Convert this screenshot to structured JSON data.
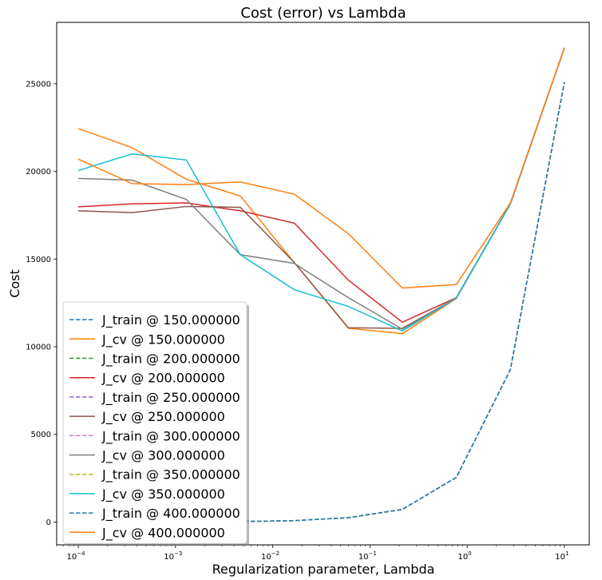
{
  "chart_data": {
    "type": "line",
    "title": "Cost (error) vs Lambda",
    "xlabel": "Regularization parameter, Lambda",
    "ylabel": "Cost",
    "xscale": "log",
    "xlim": [
      6e-05,
      18
    ],
    "ylim": [
      -1300,
      28500
    ],
    "xticks": [
      {
        "value": 0.0001,
        "base": "10",
        "exp": "−4"
      },
      {
        "value": 0.001,
        "base": "10",
        "exp": "−3"
      },
      {
        "value": 0.01,
        "base": "10",
        "exp": "−2"
      },
      {
        "value": 0.1,
        "base": "10",
        "exp": "−1"
      },
      {
        "value": 1,
        "base": "10",
        "exp": "0"
      },
      {
        "value": 10,
        "base": "10",
        "exp": "1"
      }
    ],
    "yticks": [
      0,
      5000,
      10000,
      15000,
      20000,
      25000
    ],
    "legend_position": "lower-left",
    "x": [
      0.0001,
      0.000359,
      0.001292,
      0.004642,
      0.016681,
      0.059948,
      0.215443,
      0.774264,
      2.782559,
      10
    ],
    "series": [
      {
        "name": "J_train @ 150.000000",
        "color": "#1f77b4",
        "dash": true,
        "values": [
          5,
          10,
          15,
          30,
          80,
          250,
          720,
          2550,
          8700,
          25100
        ]
      },
      {
        "name": "J_cv @ 150.000000",
        "color": "#ff7f0e",
        "dash": false,
        "values": [
          22450,
          21350,
          19550,
          18600,
          14800,
          11050,
          10750,
          12750,
          18150,
          27050
        ]
      },
      {
        "name": "J_train @ 200.000000",
        "color": "#2ca02c",
        "dash": true,
        "values": [
          5,
          10,
          15,
          30,
          80,
          250,
          720,
          2550,
          8700,
          25100
        ]
      },
      {
        "name": "J_cv @ 200.000000",
        "color": "#d62728",
        "dash": false,
        "values": [
          17980,
          18150,
          18200,
          17750,
          17050,
          13800,
          11400,
          12800,
          18150,
          27050
        ]
      },
      {
        "name": "J_train @ 250.000000",
        "color": "#9467bd",
        "dash": true,
        "values": [
          5,
          10,
          15,
          30,
          80,
          250,
          720,
          2550,
          8700,
          25100
        ]
      },
      {
        "name": "J_cv @ 250.000000",
        "color": "#8c564b",
        "dash": false,
        "values": [
          17750,
          17650,
          18000,
          17950,
          14800,
          11080,
          11050,
          12780,
          18150,
          27050
        ]
      },
      {
        "name": "J_train @ 300.000000",
        "color": "#e377c2",
        "dash": true,
        "values": [
          5,
          10,
          15,
          30,
          80,
          250,
          720,
          2550,
          8700,
          25100
        ]
      },
      {
        "name": "J_cv @ 300.000000",
        "color": "#7f7f7f",
        "dash": false,
        "values": [
          19600,
          19500,
          18400,
          15250,
          14750,
          12800,
          11000,
          12780,
          18150,
          27050
        ]
      },
      {
        "name": "J_train @ 350.000000",
        "color": "#bcbd22",
        "dash": true,
        "values": [
          5,
          10,
          15,
          30,
          80,
          250,
          720,
          2550,
          8700,
          25100
        ]
      },
      {
        "name": "J_cv @ 350.000000",
        "color": "#17becf",
        "dash": false,
        "values": [
          20050,
          21000,
          20650,
          15250,
          13250,
          12300,
          10900,
          12780,
          18150,
          27050
        ]
      },
      {
        "name": "J_train @ 400.000000",
        "color": "#1f77b4",
        "dash": true,
        "values": [
          5,
          10,
          15,
          30,
          80,
          250,
          720,
          2550,
          8700,
          25100
        ]
      },
      {
        "name": "J_cv @ 400.000000",
        "color": "#ff7f0e",
        "dash": false,
        "values": [
          20700,
          19300,
          19250,
          19400,
          18700,
          16450,
          13350,
          13550,
          18200,
          27050
        ]
      }
    ]
  }
}
